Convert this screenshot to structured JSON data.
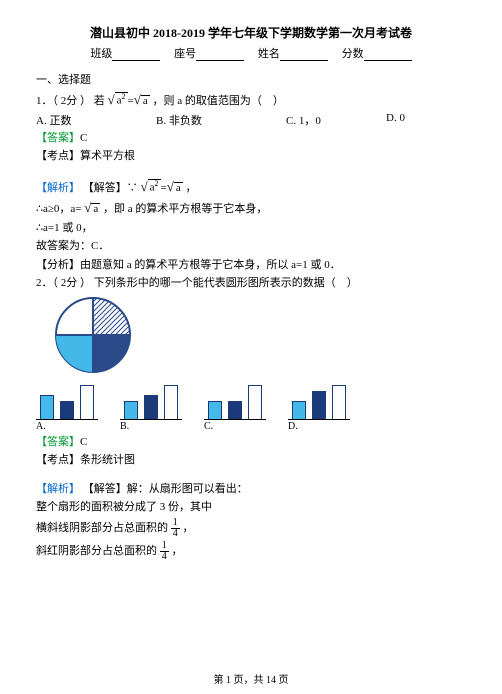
{
  "title": "潜山县初中 2018-2019 学年七年级下学期数学第一次月考试卷",
  "header": {
    "class_label": "班级",
    "seat_label": "座号",
    "name_label": "姓名",
    "score_label": "分数"
  },
  "section1_h": "一、选择题",
  "q1": {
    "num": "1．（ 2分 ） 若 ",
    "formula_lhs_base": "a",
    "formula_lhs_exp": "2",
    "formula_eq": " = ",
    "formula_rhs": "a",
    "after": " ，则 a 的取值范围为（　）",
    "optA": "A. 正数",
    "optB": "B. 非负数",
    "optC": "C. 1，0",
    "optD": "D. 0"
  },
  "ans_label": "【答案】",
  "ans1": "C",
  "pt_label": "【考点】",
  "pt1": "算术平方根",
  "jx_label": "【解析】",
  "jx1_1a": "【解答】∵ ",
  "jx1_1b": " ，",
  "jx1_2a": "∴a≥0，a= ",
  "jx1_2b": " ，即 a 的算术平方根等于它本身，",
  "jx1_3": "∴a=1 或 0，",
  "jx1_4": "故答案为：C．",
  "jx1_5": "【分析】由题意知 a 的算术平方根等于它本身，所以 a=1 或 0．",
  "q2": {
    "num": "2．（ 2分 ） 下列条形中的哪一个能代表圆形图所表示的数据（　）"
  },
  "pie": {
    "size": 78,
    "colors": {
      "q1_stroke": "#2a4a8a",
      "q2_fill": "#2a4a8a",
      "q3_fill": "#44b8e8",
      "circle_stroke": "#2a4a8a"
    },
    "hatch": "#2a4a8a"
  },
  "bars": {
    "A": {
      "heights": [
        24,
        18,
        34
      ],
      "colors": [
        "#44b8e8",
        "#1a3a7a",
        "#ffffff"
      ]
    },
    "B": {
      "heights": [
        18,
        24,
        34
      ],
      "colors": [
        "#44b8e8",
        "#1a3a7a",
        "#ffffff"
      ]
    },
    "C": {
      "heights": [
        18,
        18,
        34
      ],
      "colors": [
        "#44b8e8",
        "#1a3a7a",
        "#ffffff"
      ]
    },
    "D": {
      "heights": [
        18,
        28,
        34
      ],
      "colors": [
        "#44b8e8",
        "#1a3a7a",
        "#ffffff"
      ]
    },
    "border": "#1a3a7a"
  },
  "ans2": "C",
  "pt2": "条形统计图",
  "jx2_1": "【解答】解：从扇形图可以看出：",
  "jx2_2": "整个扇形的面积被分成了 3 份，其中",
  "jx2_3a": "横斜线阴影部分占总面积的 ",
  "jx2_3_num": "1",
  "jx2_3_den": "4",
  "jx2_3b": " ，",
  "jx2_4a": "斜红阴影部分占总面积的 ",
  "jx2_4_num": "1",
  "jx2_4_den": "4",
  "jx2_4b": " ，",
  "footer": "第 1 页，共 14 页"
}
